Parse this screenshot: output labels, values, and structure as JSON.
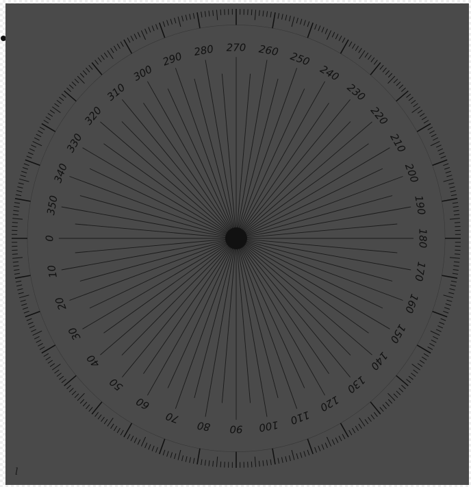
{
  "colors": {
    "background": "#4a4a4a",
    "ink": "#111111",
    "checker": "#eeeeee"
  },
  "dial": {
    "labels": [
      "0",
      "10",
      "20",
      "30",
      "40",
      "50",
      "60",
      "70",
      "80",
      "90",
      "100",
      "110",
      "120",
      "130",
      "140",
      "150",
      "160",
      "170",
      "180",
      "190",
      "200",
      "210",
      "220",
      "230",
      "240",
      "250",
      "260",
      "270",
      "280",
      "290",
      "300",
      "310",
      "320",
      "330",
      "340",
      "350"
    ],
    "label_step_degrees": 10,
    "major_tick_step_degrees": 5,
    "minor_tick_step_degrees": 1
  },
  "corner_mark": "l"
}
